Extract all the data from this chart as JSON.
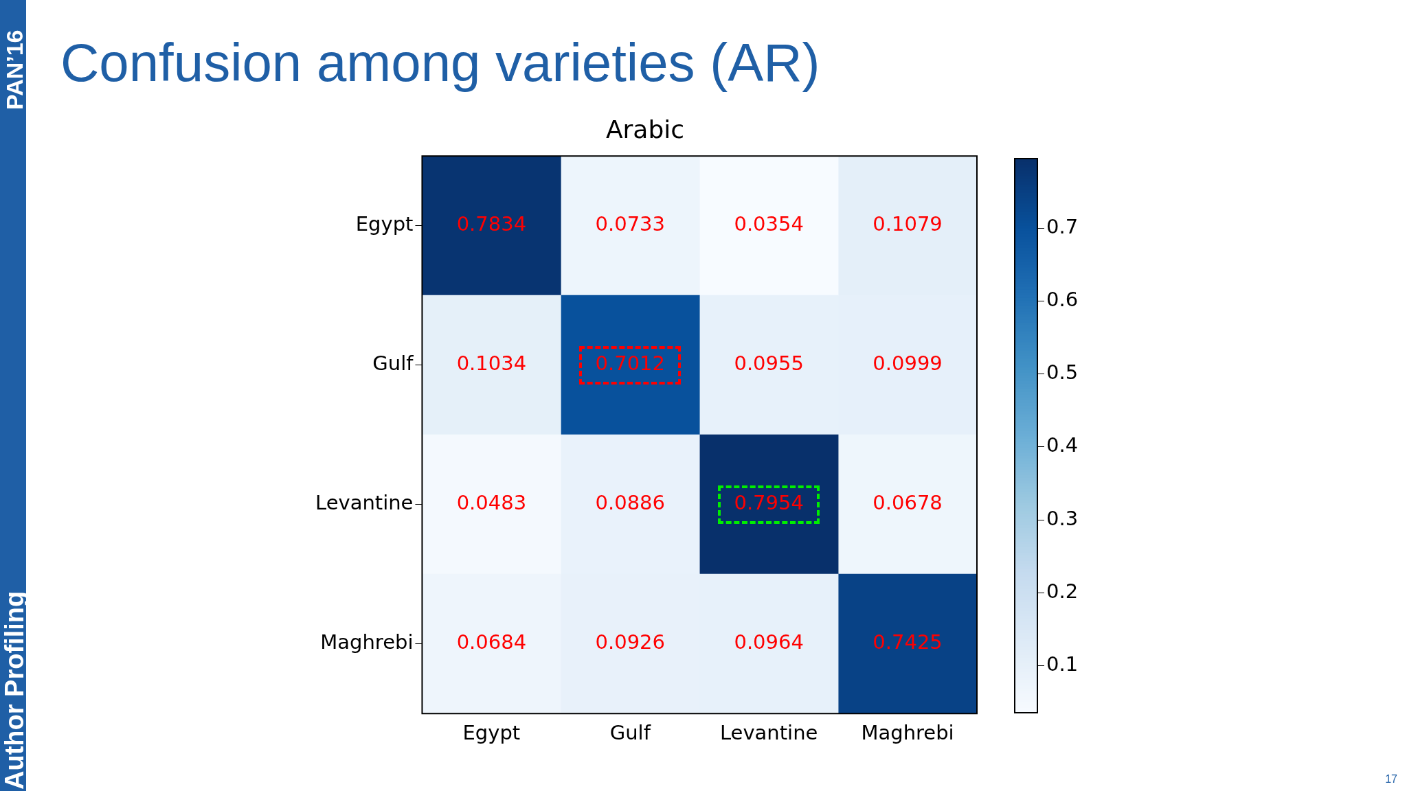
{
  "chart_data": {
    "type": "heatmap",
    "title": "Confusion among varieties (AR)",
    "subtitle": "Arabic",
    "categories": [
      "Egypt",
      "Gulf",
      "Levantine",
      "Maghrebi"
    ],
    "y_categories": [
      "Egypt",
      "Gulf",
      "Levantine",
      "Maghrebi"
    ],
    "cells": [
      [
        0.7834,
        0.0733,
        0.0354,
        0.1079
      ],
      [
        0.1034,
        0.7012,
        0.0955,
        0.0999
      ],
      [
        0.0483,
        0.0886,
        0.7954,
        0.0678
      ],
      [
        0.0684,
        0.0926,
        0.0964,
        0.7425
      ]
    ],
    "clim": [
      0.0354,
      0.7954
    ],
    "cticks": [
      0.1,
      0.2,
      0.3,
      0.4,
      0.5,
      0.6,
      0.7
    ],
    "data_labels": true,
    "grid": false,
    "annotations": [
      "PAN’16",
      "Author Profiling",
      "17"
    ]
  }
}
